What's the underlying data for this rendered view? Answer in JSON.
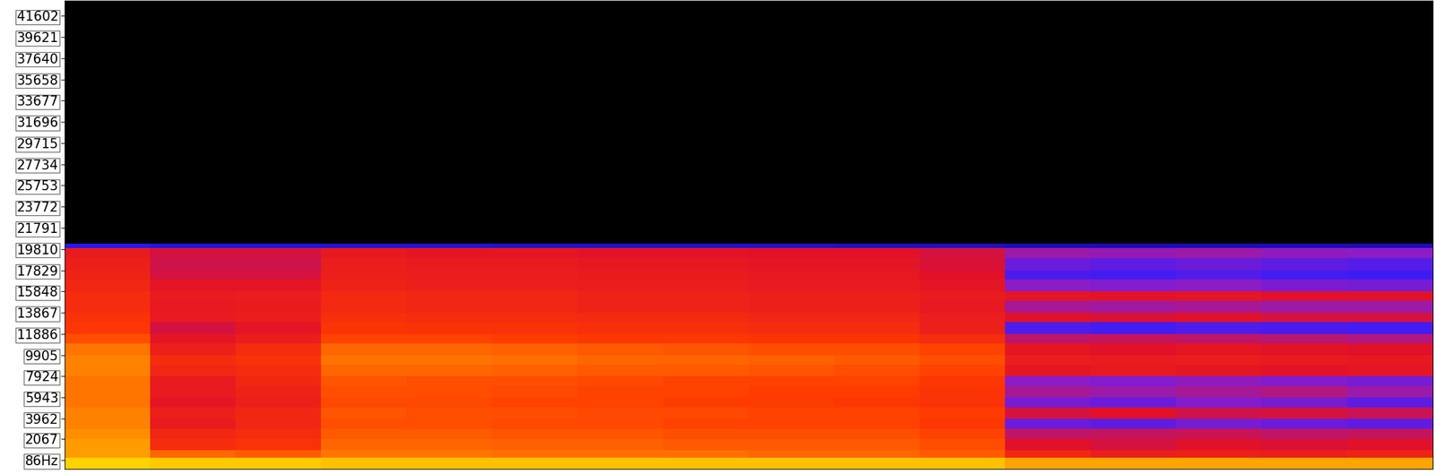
{
  "chart_data": {
    "type": "heatmap",
    "ylim": [
      -760,
      43040
    ],
    "yticks": [
      {
        "value": 86,
        "label": "86Hz"
      },
      2067,
      3962,
      5943,
      7924,
      9905,
      11886,
      13867,
      15848,
      17829,
      19810,
      21791,
      23772,
      25753,
      27734,
      29715,
      31696,
      33677,
      35658,
      37640,
      39621,
      41602
    ],
    "tick_labels": "y",
    "zlim": [
      -120,
      0
    ],
    "freq_edges": [
      -760,
      300,
      1000,
      2067,
      3000,
      3962,
      5000,
      5943,
      7000,
      7924,
      9000,
      9905,
      11000,
      11886,
      13000,
      13867,
      15000,
      15848,
      17000,
      17829,
      19000,
      19900,
      20300,
      43040
    ],
    "cells": [
      [
        -18,
        -20,
        -20,
        -22,
        -22,
        -22,
        -22,
        -22,
        -22,
        -22,
        -22,
        -28,
        -28,
        -28,
        -28,
        -28
      ],
      [
        -30,
        -38,
        -40,
        -36,
        -36,
        -37,
        -37,
        -37,
        -38,
        -38,
        -40,
        -52,
        -55,
        -54,
        -55,
        -53
      ],
      [
        -30,
        -50,
        -48,
        -38,
        -38,
        -39,
        -39,
        -40,
        -40,
        -40,
        -42,
        -60,
        -62,
        -60,
        -61,
        -60
      ],
      [
        -32,
        -52,
        -50,
        -40,
        -40,
        -41,
        -41,
        -42,
        -42,
        -42,
        -44,
        -66,
        -65,
        -64,
        -66,
        -65
      ],
      [
        -34,
        -56,
        -52,
        -42,
        -42,
        -43,
        -43,
        -44,
        -44,
        -44,
        -46,
        -80,
        -82,
        -78,
        -80,
        -82
      ],
      [
        -34,
        -54,
        -52,
        -41,
        -42,
        -42,
        -43,
        -43,
        -44,
        -44,
        -45,
        -62,
        -60,
        -63,
        -62,
        -64
      ],
      [
        -36,
        -58,
        -54,
        -43,
        -43,
        -44,
        -44,
        -45,
        -45,
        -46,
        -48,
        -78,
        -80,
        -76,
        -78,
        -82
      ],
      [
        -36,
        -56,
        -53,
        -42,
        -42,
        -43,
        -44,
        -44,
        -45,
        -45,
        -47,
        -70,
        -72,
        -70,
        -68,
        -72
      ],
      [
        -36,
        -56,
        -52,
        -41,
        -42,
        -42,
        -43,
        -44,
        -44,
        -44,
        -46,
        -75,
        -76,
        -74,
        -76,
        -78
      ],
      [
        -34,
        -52,
        -50,
        -38,
        -38,
        -39,
        -40,
        -40,
        -41,
        -42,
        -44,
        -58,
        -57,
        -58,
        -59,
        -58
      ],
      [
        -34,
        -50,
        -48,
        -36,
        -36,
        -37,
        -38,
        -38,
        -39,
        -40,
        -42,
        -55,
        -56,
        -55,
        -56,
        -57
      ],
      [
        -36,
        -54,
        -50,
        -38,
        -38,
        -39,
        -40,
        -41,
        -42,
        -42,
        -44,
        -58,
        -60,
        -58,
        -59,
        -60
      ],
      [
        -42,
        -58,
        -55,
        -44,
        -44,
        -45,
        -46,
        -46,
        -47,
        -47,
        -50,
        -66,
        -65,
        -66,
        -67,
        -68
      ],
      [
        -46,
        -62,
        -58,
        -47,
        -48,
        -48,
        -49,
        -49,
        -50,
        -50,
        -54,
        -84,
        -86,
        -84,
        -85,
        -86
      ],
      [
        -48,
        -56,
        -55,
        -49,
        -50,
        -50,
        -51,
        -51,
        -52,
        -52,
        -55,
        -60,
        -61,
        -60,
        -62,
        -62
      ],
      [
        -50,
        -57,
        -56,
        -51,
        -52,
        -52,
        -53,
        -53,
        -54,
        -54,
        -57,
        -70,
        -71,
        -70,
        -72,
        -72
      ],
      [
        -50,
        -56,
        -55,
        -51,
        -52,
        -52,
        -53,
        -53,
        -54,
        -54,
        -56,
        -58,
        -59,
        -58,
        -60,
        -60
      ],
      [
        -52,
        -58,
        -58,
        -53,
        -54,
        -54,
        -55,
        -55,
        -56,
        -56,
        -58,
        -75,
        -76,
        -75,
        -77,
        -78
      ],
      [
        -53,
        -62,
        -62,
        -54,
        -55,
        -55,
        -56,
        -56,
        -57,
        -57,
        -60,
        -85,
        -86,
        -84,
        -86,
        -87
      ],
      [
        -54,
        -63,
        -63,
        -55,
        -56,
        -56,
        -57,
        -57,
        -58,
        -58,
        -61,
        -80,
        -82,
        -80,
        -82,
        -83
      ],
      [
        -56,
        -62,
        -62,
        -57,
        -58,
        -58,
        -59,
        -59,
        -60,
        -60,
        -62,
        -72,
        -73,
        -72,
        -74,
        -75
      ],
      [
        -92,
        -94,
        -94,
        -95,
        -95,
        -96,
        -96,
        -96,
        -96,
        -97,
        -97,
        -98,
        -98,
        -98,
        -98,
        -98
      ],
      [
        -120,
        -120,
        -120,
        -120,
        -120,
        -120,
        -120,
        -120,
        -120,
        -120,
        -120,
        -120,
        -120,
        -120,
        -120,
        -120
      ]
    ]
  }
}
